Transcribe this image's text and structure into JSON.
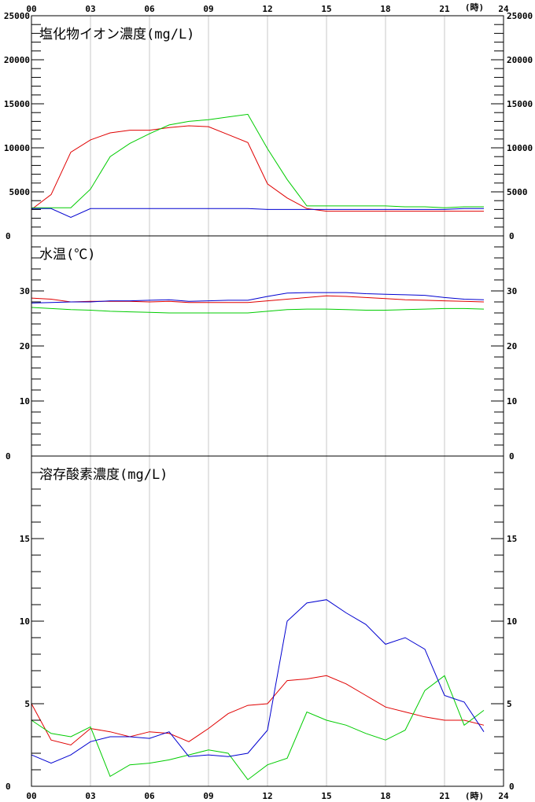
{
  "chart_data": {
    "type": "line",
    "x_unit": "(時)",
    "x_ticks": [
      "00",
      "03",
      "06",
      "09",
      "12",
      "15",
      "18",
      "21",
      "24"
    ],
    "x_range": [
      0,
      24
    ],
    "colors": {
      "red": "#e00000",
      "green": "#00cc00",
      "blue": "#0000d0",
      "grid": "#c8c8c8",
      "axis": "#000000"
    },
    "panels": [
      {
        "title": "塩化物イオン濃度(mg/L)",
        "ylim": [
          0,
          25000
        ],
        "yticks": [
          0,
          5000,
          10000,
          15000,
          20000,
          25000
        ],
        "ytick_labels": [
          "0",
          "5000",
          "10000",
          "15000",
          "20000",
          "25000"
        ],
        "minor_step": 1000,
        "x": [
          0,
          1,
          2,
          3,
          4,
          5,
          6,
          7,
          8,
          9,
          10,
          11,
          12,
          13,
          14,
          15,
          16,
          17,
          18,
          19,
          20,
          21,
          22,
          23
        ],
        "series": [
          {
            "color": "red",
            "values": [
              3000,
              4700,
              9500,
              10900,
              11700,
              12000,
              12000,
              12300,
              12500,
              12400,
              11500,
              10600,
              5900,
              4300,
              3100,
              2800,
              2800,
              2800,
              2800,
              2800,
              2800,
              2800,
              2800,
              2800
            ]
          },
          {
            "color": "green",
            "values": [
              3200,
              3200,
              3200,
              5300,
              9000,
              10500,
              11600,
              12600,
              13000,
              13200,
              13500,
              13800,
              9900,
              6400,
              3400,
              3400,
              3400,
              3400,
              3400,
              3300,
              3300,
              3200,
              3300,
              3300
            ]
          },
          {
            "color": "blue",
            "values": [
              3100,
              3100,
              2100,
              3100,
              3100,
              3100,
              3100,
              3100,
              3100,
              3100,
              3100,
              3100,
              3000,
              3000,
              3000,
              3000,
              3000,
              3000,
              3000,
              3000,
              3000,
              3000,
              3100,
              3100
            ]
          }
        ]
      },
      {
        "title": "水温(℃)",
        "ylim": [
          0,
          40
        ],
        "yticks": [
          0,
          10,
          20,
          30
        ],
        "ytick_labels": [
          "0",
          "10",
          "20",
          "30"
        ],
        "minor_step": 2,
        "x": [
          0,
          1,
          2,
          3,
          4,
          5,
          6,
          7,
          8,
          9,
          10,
          11,
          12,
          13,
          14,
          15,
          16,
          17,
          18,
          19,
          20,
          21,
          22,
          23
        ],
        "series": [
          {
            "color": "red",
            "values": [
              28.7,
              28.5,
              28.0,
              28.1,
              28.1,
              28.1,
              28.0,
              28.1,
              27.9,
              27.9,
              27.9,
              27.9,
              28.2,
              28.5,
              28.8,
              29.1,
              29.0,
              28.8,
              28.6,
              28.4,
              28.3,
              28.2,
              28.1,
              28.0
            ]
          },
          {
            "color": "green",
            "values": [
              27.0,
              26.8,
              26.6,
              26.5,
              26.3,
              26.2,
              26.1,
              26.0,
              26.0,
              26.0,
              26.0,
              26.0,
              26.3,
              26.6,
              26.7,
              26.7,
              26.6,
              26.5,
              26.5,
              26.6,
              26.7,
              26.8,
              26.8,
              26.7
            ]
          },
          {
            "color": "blue",
            "values": [
              27.8,
              27.9,
              28.0,
              28.0,
              28.2,
              28.2,
              28.3,
              28.4,
              28.1,
              28.2,
              28.3,
              28.3,
              29.0,
              29.6,
              29.7,
              29.7,
              29.7,
              29.5,
              29.4,
              29.3,
              29.2,
              28.8,
              28.5,
              28.4
            ]
          }
        ]
      },
      {
        "title": "溶存酸素濃度(mg/L)",
        "ylim": [
          0,
          20
        ],
        "yticks": [
          0,
          5,
          10,
          15
        ],
        "ytick_labels": [
          "0",
          "5",
          "10",
          "15"
        ],
        "minor_step": 1,
        "x": [
          0,
          1,
          2,
          3,
          4,
          5,
          6,
          7,
          8,
          9,
          10,
          11,
          12,
          13,
          14,
          15,
          16,
          17,
          18,
          19,
          20,
          21,
          22,
          23
        ],
        "series": [
          {
            "color": "red",
            "values": [
              5.0,
              2.8,
              2.5,
              3.5,
              3.3,
              3.0,
              3.3,
              3.2,
              2.7,
              3.5,
              4.4,
              4.9,
              5.0,
              6.4,
              6.5,
              6.7,
              6.2,
              5.5,
              4.8,
              4.5,
              4.2,
              4.0,
              4.0,
              3.7
            ]
          },
          {
            "color": "green",
            "values": [
              4.0,
              3.2,
              3.0,
              3.6,
              0.6,
              1.3,
              1.4,
              1.6,
              1.9,
              2.2,
              2.0,
              0.4,
              1.3,
              1.7,
              4.5,
              4.0,
              3.7,
              3.2,
              2.8,
              3.4,
              5.8,
              6.7,
              3.7,
              4.6
            ]
          },
          {
            "color": "blue",
            "values": [
              1.9,
              1.4,
              1.9,
              2.7,
              3.0,
              3.0,
              2.9,
              3.3,
              1.8,
              1.9,
              1.8,
              2.0,
              3.4,
              10.0,
              11.1,
              11.3,
              10.5,
              9.8,
              8.6,
              9.0,
              8.3,
              5.5,
              5.1,
              3.3
            ]
          }
        ]
      }
    ]
  }
}
